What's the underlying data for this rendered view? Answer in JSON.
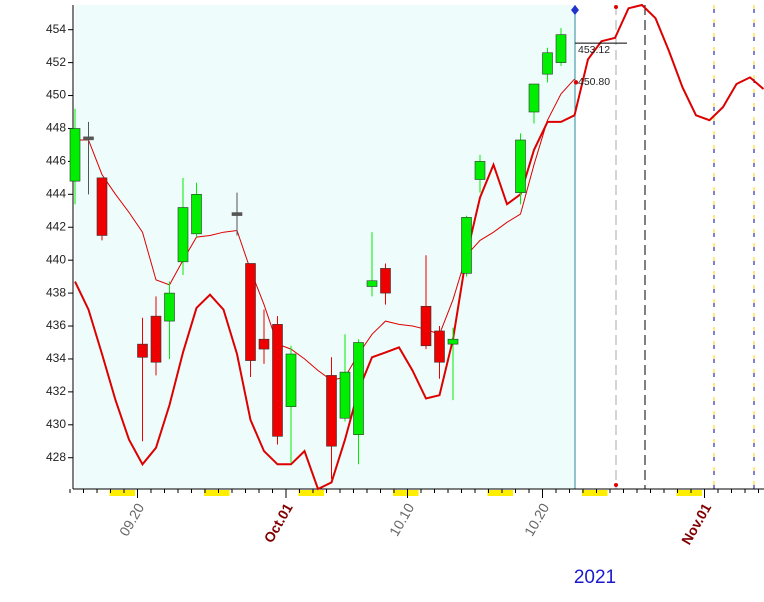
{
  "chart_data": {
    "type": "candlestick",
    "categories": [
      null,
      null,
      null,
      null,
      null,
      "09.20",
      null,
      null,
      null,
      null,
      null,
      null,
      null,
      null,
      null,
      null,
      "Oct.01",
      null,
      null,
      null,
      null,
      null,
      null,
      null,
      null,
      "10.10",
      null,
      null,
      null,
      null,
      null,
      null,
      null,
      null,
      null,
      "10.20",
      null,
      null,
      null,
      null,
      null,
      null,
      null,
      null,
      null,
      null,
      null,
      "Nov.01",
      null,
      null,
      null,
      null
    ],
    "open": [
      444.8,
      447.3,
      445.0,
      null,
      null,
      434.9,
      436.6,
      436.3,
      439.9,
      441.6,
      null,
      null,
      442.7,
      439.8,
      435.2,
      436.1,
      431.1,
      null,
      null,
      433.0,
      430.4,
      429.4,
      438.4,
      439.5,
      null,
      null,
      437.2,
      435.7,
      434.9,
      439.2,
      444.9,
      null,
      null,
      444.1,
      449.0,
      451.3,
      452.0,
      null,
      null,
      null,
      null,
      null,
      null,
      null,
      null,
      null,
      null,
      null,
      null,
      null,
      null,
      null
    ],
    "high": [
      449.2,
      448.4,
      445.0,
      null,
      null,
      436.5,
      437.8,
      438.7,
      445.0,
      444.7,
      null,
      null,
      444.1,
      439.8,
      437.0,
      436.6,
      434.8,
      null,
      null,
      434.1,
      435.5,
      435.2,
      441.7,
      439.8,
      null,
      null,
      440.3,
      436.0,
      435.9,
      442.7,
      446.4,
      null,
      null,
      447.7,
      450.7,
      452.9,
      454.1,
      null,
      null,
      null,
      null,
      null,
      null,
      null,
      null,
      null,
      null,
      null,
      null,
      null,
      null,
      null
    ],
    "low": [
      443.4,
      444.0,
      441.2,
      null,
      null,
      429.0,
      433.0,
      434.0,
      439.1,
      441.4,
      null,
      null,
      441.5,
      432.9,
      433.7,
      428.8,
      427.7,
      null,
      null,
      426.7,
      430.2,
      427.6,
      437.8,
      437.3,
      null,
      null,
      434.6,
      432.8,
      431.5,
      439.0,
      444.1,
      null,
      null,
      443.4,
      448.3,
      450.8,
      451.8,
      null,
      null,
      null,
      null,
      null,
      null,
      null,
      null,
      null,
      null,
      null,
      null,
      null,
      null,
      null
    ],
    "close": [
      448.0,
      447.4,
      441.5,
      null,
      null,
      434.1,
      433.8,
      438.0,
      443.2,
      444.0,
      null,
      null,
      442.8,
      433.9,
      434.6,
      429.3,
      434.3,
      null,
      null,
      428.7,
      433.2,
      435.0,
      438.75,
      438.0,
      null,
      null,
      434.8,
      433.8,
      435.2,
      442.6,
      446.0,
      null,
      null,
      447.3,
      450.7,
      452.6,
      453.7,
      null,
      null,
      null,
      null,
      null,
      null,
      null,
      null,
      null,
      null,
      null,
      null,
      null,
      null,
      null
    ],
    "up_color": "#00ee00",
    "down_color": "#ee0000",
    "lines": [
      {
        "color": "#dd0000",
        "width": 1,
        "values": [
          447.3,
          447.3,
          445.2,
          444.0,
          442.9,
          441.7,
          438.8,
          438.5,
          440.0,
          441.4,
          441.5,
          441.7,
          441.8,
          439.4,
          437.3,
          434.9,
          434.6,
          434.0,
          433.3,
          432.7,
          432.9,
          434.3,
          435.5,
          436.3,
          436.1,
          436.0,
          435.8,
          435.5,
          437.6,
          440.3,
          441.2,
          441.7,
          442.3,
          442.8,
          445.8,
          448.5,
          450.1,
          451.0,
          null,
          null,
          null,
          null,
          null,
          null,
          null,
          null,
          null,
          null,
          null,
          null,
          null,
          null
        ]
      },
      {
        "color": "#dd0000",
        "width": 2,
        "values": [
          438.7,
          437.0,
          434.3,
          431.5,
          429.1,
          427.6,
          428.6,
          431.2,
          434.4,
          437.1,
          437.9,
          437.0,
          434.3,
          430.3,
          428.4,
          427.6,
          427.6,
          428.4,
          426.1,
          426.5,
          429.1,
          432.1,
          434.1,
          434.4,
          434.7,
          433.3,
          431.6,
          431.8,
          435.2,
          440.3,
          443.8,
          445.8,
          443.4,
          444.0,
          446.7,
          448.4,
          448.4,
          448.8,
          452.2,
          453.3,
          453.5,
          455.3,
          455.5,
          454.7,
          452.7,
          450.5,
          448.8,
          448.5,
          449.3,
          450.7,
          451.1,
          450.4
        ]
      }
    ],
    "price_labels": [
      {
        "value": 453.12,
        "label": "453.12"
      },
      {
        "value": 450.8,
        "label": "450.80"
      }
    ],
    "ylim": [
      426.1,
      455.5
    ],
    "yticks": [
      428,
      430,
      432,
      434,
      436,
      438,
      440,
      442,
      444,
      446,
      448,
      450,
      452,
      454
    ],
    "year_label": "2021"
  }
}
